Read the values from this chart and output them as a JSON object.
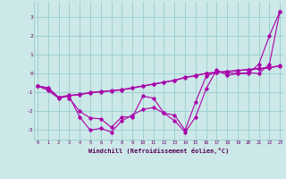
{
  "xlabel": "Windchill (Refroidissement éolien,°C)",
  "x_ticks": [
    0,
    1,
    2,
    3,
    4,
    5,
    6,
    7,
    8,
    9,
    10,
    11,
    12,
    13,
    14,
    15,
    16,
    17,
    18,
    19,
    20,
    21,
    22,
    23
  ],
  "ylim": [
    -3.5,
    3.8
  ],
  "xlim": [
    -0.3,
    23.3
  ],
  "bg_color": "#cce8e8",
  "line_color": "#aa00aa",
  "grid_color": "#99cccc",
  "yticks": [
    -3,
    -2,
    -1,
    0,
    1,
    2,
    3
  ],
  "series": [
    [
      -0.65,
      -0.9,
      -1.3,
      -1.2,
      -2.3,
      -3.0,
      -2.9,
      -3.1,
      -2.5,
      -2.2,
      -1.9,
      -1.8,
      -2.1,
      -2.2,
      -3.0,
      -1.5,
      -0.15,
      0.1,
      0.05,
      0.0,
      0.05,
      0.0,
      0.5,
      3.3
    ],
    [
      null,
      null,
      null,
      -1.3,
      -2.0,
      -2.35,
      -2.4,
      -2.85,
      -2.3,
      -2.3,
      -1.2,
      -1.3,
      -2.1,
      -2.5,
      -3.1,
      -2.3,
      -0.8,
      0.2,
      -0.1,
      0.0,
      0.0,
      0.5,
      2.0,
      3.3
    ],
    [
      -0.65,
      -0.75,
      -1.25,
      -1.15,
      -1.1,
      -1.0,
      -0.95,
      -0.9,
      -0.85,
      -0.75,
      -0.65,
      -0.55,
      -0.45,
      -0.35,
      -0.2,
      -0.1,
      0.0,
      0.05,
      0.1,
      0.15,
      0.2,
      0.25,
      0.3,
      0.4
    ],
    [
      -0.65,
      -0.8,
      -1.28,
      -1.18,
      -1.12,
      -1.02,
      -0.97,
      -0.92,
      -0.87,
      -0.77,
      -0.67,
      -0.57,
      -0.47,
      -0.37,
      -0.22,
      -0.12,
      0.02,
      0.07,
      0.12,
      0.17,
      0.22,
      0.27,
      0.32,
      0.42
    ]
  ]
}
